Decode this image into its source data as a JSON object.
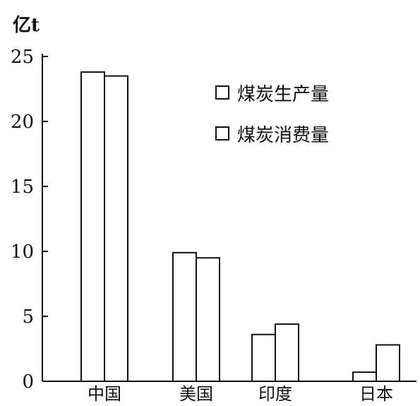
{
  "chart_data": {
    "type": "bar",
    "title": "",
    "ylabel": "亿t",
    "xlabel": "",
    "ylim": [
      0,
      25
    ],
    "yticks": [
      0,
      5,
      10,
      15,
      20,
      25
    ],
    "categories": [
      "中国",
      "美国",
      "印度",
      "日本"
    ],
    "series": [
      {
        "name": "煤炭生产量",
        "values": [
          23.8,
          9.9,
          3.6,
          0.7
        ]
      },
      {
        "name": "煤炭消费量",
        "values": [
          23.5,
          9.5,
          4.4,
          2.8
        ]
      }
    ],
    "legend_position": "top-right",
    "grid": false,
    "colors": {
      "bar_fill": "#ffffff",
      "bar_stroke": "#111111"
    }
  }
}
